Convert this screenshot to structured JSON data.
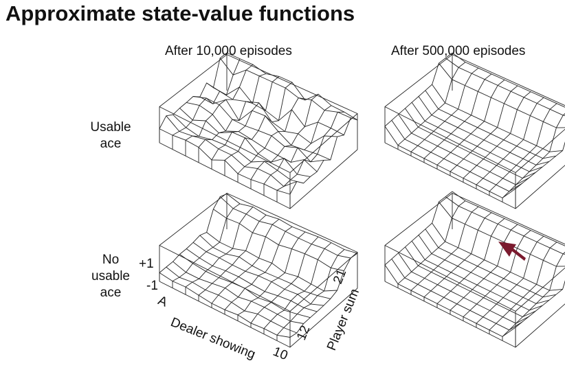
{
  "title": "Approximate state-value functions",
  "columns": [
    "After 10,000 episodes",
    "After 500,000 episodes"
  ],
  "rows": [
    {
      "lines": [
        "Usable",
        "ace"
      ]
    },
    {
      "lines": [
        "No",
        "usable",
        "ace"
      ]
    }
  ],
  "axes": {
    "value_high": "+1",
    "value_low": "-1",
    "dealer_start": "A",
    "dealer_label": "Dealer showing",
    "dealer_end": "10",
    "player_start": "12",
    "player_end": "21",
    "player_label": "Player sum"
  },
  "colors": {
    "arrow": "#7a1a2e",
    "line": "#222222"
  },
  "icons": {
    "highlight": "arrow-icon"
  }
}
